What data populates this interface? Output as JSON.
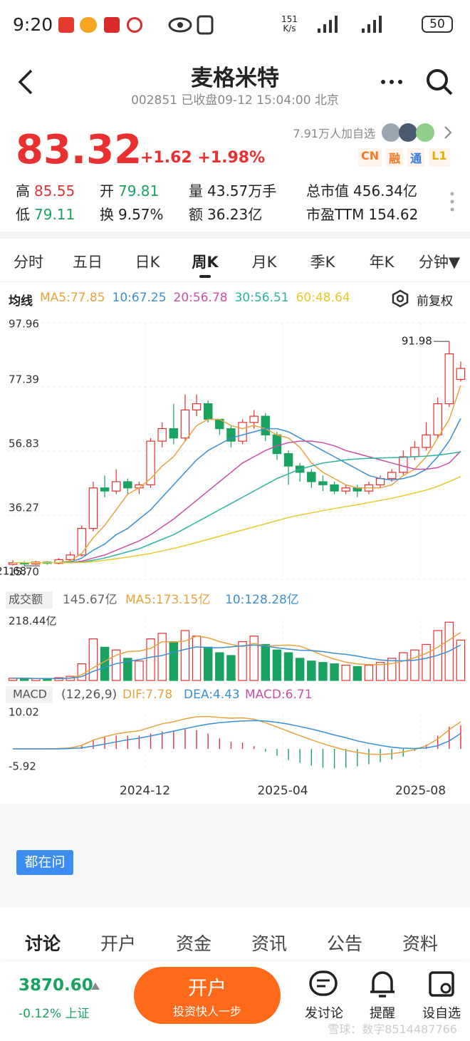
{
  "status": {
    "time": "9:20",
    "speed": "151",
    "speed_unit": "K/s",
    "battery": "50"
  },
  "header": {
    "title": "麦格米特",
    "subtitle": "002851 已收盘09-12 15:04:00 北京"
  },
  "quote": {
    "price": "83.32",
    "change": "+1.62",
    "percent": "+1.98%",
    "followers": "7.91万人加自选",
    "tags": [
      {
        "text": "CN",
        "color": "#f07a2a"
      },
      {
        "text": "融",
        "color": "#f07a2a"
      },
      {
        "text": "通",
        "color": "#2f7be0"
      },
      {
        "text": "L1",
        "color": "#e0b000"
      }
    ],
    "stats": [
      [
        {
          "label": "高",
          "value": "85.55",
          "color": "#e93030"
        },
        {
          "label": "开",
          "value": "79.81",
          "color": "#1aa260"
        },
        {
          "label": "量",
          "value": "43.57万手",
          "color": "#222"
        },
        {
          "label": "总市值",
          "value": "456.34亿",
          "color": "#222"
        }
      ],
      [
        {
          "label": "低",
          "value": "79.11",
          "color": "#1aa260"
        },
        {
          "label": "换",
          "value": "9.57%",
          "color": "#222"
        },
        {
          "label": "额",
          "value": "36.23亿",
          "color": "#222"
        },
        {
          "label": "市盈TTM",
          "value": "154.62",
          "color": "#222"
        }
      ]
    ]
  },
  "tabs": {
    "items": [
      "分时",
      "五日",
      "日K",
      "周K",
      "月K",
      "季K",
      "年K",
      "分钟▼"
    ],
    "active": 3
  },
  "chart_data": [
    {
      "type": "candlestick",
      "legend_title": "均线",
      "adjust_label": "前复权",
      "high_label": "91.98",
      "low_label": "21.68",
      "grid": true,
      "up_color": "#e93030",
      "down_color": "#1aa260",
      "candles": [
        [
          20.5,
          21,
          21.8,
          20.2
        ],
        [
          21,
          20.6,
          21.5,
          20
        ],
        [
          20.6,
          21.2,
          21.6,
          20.3
        ],
        [
          21.2,
          20.8,
          21.5,
          20.4
        ],
        [
          20.8,
          22,
          22.5,
          20.5
        ],
        [
          22,
          23.5,
          24.5,
          21.68
        ],
        [
          23.5,
          32,
          33,
          23
        ],
        [
          32,
          45,
          47,
          31
        ],
        [
          45,
          44,
          49,
          42
        ],
        [
          44,
          47,
          51,
          43
        ],
        [
          47,
          45,
          48,
          43
        ],
        [
          45,
          46,
          47,
          43
        ],
        [
          46,
          60,
          61,
          45
        ],
        [
          60,
          64,
          66,
          58
        ],
        [
          64,
          61,
          72,
          59
        ],
        [
          61,
          70,
          75,
          60
        ],
        [
          70,
          72,
          75,
          68
        ],
        [
          72,
          67,
          73,
          66
        ],
        [
          67,
          64,
          67,
          62
        ],
        [
          64,
          60,
          65,
          58
        ],
        [
          60,
          66,
          67,
          59
        ],
        [
          66,
          68,
          70,
          64
        ],
        [
          68,
          62,
          69,
          60
        ],
        [
          62,
          56,
          63,
          54
        ],
        [
          56,
          52,
          57,
          46
        ],
        [
          52,
          50,
          53,
          47
        ],
        [
          50,
          47,
          51,
          45
        ],
        [
          47,
          46,
          49,
          44
        ],
        [
          46,
          44,
          47,
          43
        ],
        [
          44,
          45,
          46,
          43
        ],
        [
          45,
          44,
          46,
          42
        ],
        [
          44,
          46,
          47,
          43
        ],
        [
          46,
          48,
          49,
          45
        ],
        [
          48,
          50,
          51,
          47
        ],
        [
          50,
          55,
          57,
          49
        ],
        [
          55,
          58,
          60,
          54
        ],
        [
          58,
          62,
          66,
          57
        ],
        [
          62,
          72,
          74,
          61
        ],
        [
          72,
          88,
          91.98,
          71
        ],
        [
          79.81,
          83.32,
          85.55,
          79.11
        ]
      ],
      "series": [
        {
          "name": "MA5:77.85",
          "color": "#e8a33d",
          "values": [
            21,
            21,
            21,
            21,
            21,
            21.6,
            24,
            29,
            33,
            38,
            43,
            45,
            48,
            52,
            55,
            60,
            65,
            67,
            67,
            65,
            64,
            65,
            64,
            62,
            61,
            58,
            53,
            50,
            48,
            46,
            45,
            45,
            45,
            46,
            49,
            51,
            55,
            61,
            67,
            77.85
          ]
        },
        {
          "name": "10:67.25",
          "color": "#3a8fd6",
          "values": [
            21,
            21,
            21,
            21,
            21,
            21.2,
            22.5,
            25,
            27,
            30,
            32,
            35,
            38,
            42,
            46,
            50,
            54,
            57,
            59,
            61,
            62,
            63,
            64,
            64,
            63,
            61,
            59,
            57,
            55,
            53,
            51,
            49,
            48,
            47.5,
            48,
            49,
            51,
            55,
            60,
            67.25
          ]
        },
        {
          "name": "20:56.78",
          "color": "#c94fa6",
          "values": [
            21,
            21,
            21,
            21,
            21,
            21,
            21.5,
            22.5,
            23.5,
            25,
            26.5,
            28,
            30,
            32.5,
            35,
            38,
            41,
            44,
            47,
            50,
            53,
            55,
            57,
            58.5,
            59.5,
            60,
            60,
            59.5,
            58.5,
            57,
            56,
            55,
            54,
            53,
            52,
            51,
            51,
            51.5,
            53,
            56.78
          ]
        },
        {
          "name": "30:56.51",
          "color": "#2bb3a3",
          "values": [
            21,
            21,
            21,
            21,
            21,
            21,
            21.2,
            21.8,
            22.5,
            23.5,
            24.5,
            25.5,
            27,
            28.5,
            30,
            32,
            34,
            36,
            38,
            40,
            42,
            44,
            46,
            48,
            49.5,
            51,
            52,
            53,
            53.5,
            54,
            54.3,
            54.5,
            54.6,
            54.7,
            54.8,
            55,
            55.2,
            55.5,
            56,
            56.51
          ]
        },
        {
          "name": "60:48.64",
          "color": "#e8c92a",
          "values": [
            21,
            21,
            21,
            21,
            21,
            21,
            21.1,
            21.4,
            21.8,
            22.3,
            22.8,
            23.4,
            24,
            24.8,
            25.6,
            26.5,
            27.5,
            28.5,
            29.5,
            30.5,
            31.5,
            32.5,
            33.5,
            34.5,
            35.5,
            36.3,
            37,
            37.7,
            38.4,
            39,
            39.6,
            40.3,
            41,
            41.7,
            42.5,
            43.4,
            44.3,
            45.5,
            47,
            48.64
          ]
        }
      ],
      "ylim": [
        15.7,
        97.96
      ],
      "yticks": [
        97.96,
        77.39,
        56.83,
        36.27,
        {
          "value": 15.7,
          "label": "15.70"
        }
      ],
      "xticks": [
        {
          "value": 11.5,
          "label": "2024-12"
        },
        {
          "value": 23.5,
          "label": "2025-04"
        },
        {
          "value": 35.5,
          "label": "2025-08"
        }
      ]
    },
    {
      "type": "bar",
      "title": "成交额",
      "current_label": "145.67亿",
      "values": [
        8,
        6,
        7,
        6,
        10,
        15,
        60,
        150,
        120,
        110,
        80,
        70,
        150,
        170,
        140,
        180,
        160,
        120,
        100,
        90,
        140,
        160,
        130,
        110,
        100,
        80,
        70,
        65,
        60,
        55,
        50,
        55,
        65,
        80,
        100,
        110,
        130,
        180,
        210,
        145.67
      ],
      "series": [
        {
          "name": "MA5:173.15亿",
          "color": "#e8a33d",
          "values": [
            8,
            8,
            7,
            7,
            7,
            9,
            20,
            46,
            69,
            91,
            104,
            106,
            116,
            140,
            138,
            142,
            160,
            154,
            140,
            130,
            122,
            134,
            124,
            126,
            128,
            124,
            108,
            91,
            77,
            66,
            60,
            57,
            57,
            61,
            70,
            82,
            98,
            120,
            146,
            173.15
          ]
        },
        {
          "name": "10:128.28亿",
          "color": "#3a8fd6",
          "values": [
            8,
            8,
            7,
            7,
            7,
            8,
            14,
            33,
            47,
            61,
            68,
            75,
            84,
            90,
            102,
            112,
            121,
            119,
            118,
            121,
            125,
            128,
            124,
            118,
            113,
            109,
            108,
            104,
            98,
            94,
            88,
            80,
            74,
            71,
            71,
            73,
            80,
            91,
            106,
            128.28
          ]
        }
      ],
      "ylim": [
        0,
        218.44
      ],
      "yticks": [
        {
          "value": 218.44,
          "label": "218.44亿"
        }
      ]
    },
    {
      "type": "macd",
      "title": "MACD",
      "params": "(12,26,9)",
      "series": [
        {
          "name": "DIF:7.78",
          "color": "#e8a33d",
          "values": [
            0,
            0,
            0,
            0,
            0.1,
            0.3,
            1,
            2.5,
            3.5,
            4.3,
            4.8,
            5.2,
            6.2,
            7.2,
            7.8,
            8.6,
            9.2,
            9.3,
            9,
            8.8,
            8.9,
            8.5,
            7.5,
            6.3,
            5,
            3.8,
            2.6,
            1.5,
            0.5,
            -0.4,
            -1,
            -1.5,
            -1.6,
            -1.4,
            -0.9,
            -0.2,
            0.9,
            2.8,
            5.5,
            7.78
          ]
        },
        {
          "name": "DEA:4.43",
          "color": "#3a8fd6",
          "values": [
            0,
            0,
            0,
            0,
            0,
            0.1,
            0.3,
            0.8,
            1.4,
            2,
            2.6,
            3.1,
            3.7,
            4.4,
            5.1,
            5.8,
            6.5,
            7.1,
            7.5,
            7.8,
            8,
            8.1,
            8,
            7.6,
            7.1,
            6.4,
            5.7,
            4.9,
            4,
            3.2,
            2.3,
            1.6,
            1,
            0.5,
            0.2,
            0.1,
            0.3,
            0.9,
            2.3,
            4.43
          ]
        }
      ],
      "histogram": {
        "name": "MACD:6.71",
        "color": "#c94fa6",
        "values": [
          0,
          0,
          0,
          0,
          0.2,
          0.4,
          1.2,
          2.6,
          3.4,
          3.8,
          3.8,
          3.8,
          4.4,
          5,
          5.2,
          5.6,
          5.4,
          4.4,
          3,
          2,
          1.8,
          0.8,
          -0.8,
          -2,
          -3.2,
          -4,
          -4.8,
          -5.4,
          -5.6,
          -5.4,
          -5,
          -4.4,
          -3.8,
          -3,
          -2.2,
          -0.6,
          1.2,
          3.8,
          6.4,
          6.71
        ]
      },
      "ylim": [
        -5.92,
        10.02
      ],
      "yticks": [
        10.02,
        -5.92
      ]
    }
  ],
  "ask": "都在问",
  "bottom_tabs": {
    "items": [
      "讨论",
      "开户",
      "资金",
      "资讯",
      "公告",
      "资料"
    ],
    "active": 0
  },
  "footer": {
    "index_value": "3870.60",
    "index_change": "-0.12% 上证",
    "button": "开户",
    "button_sub": "投资快人一步",
    "actions": [
      "发讨论",
      "提醒",
      "设自选"
    ],
    "watermark": "雪球：数字8514487766"
  }
}
